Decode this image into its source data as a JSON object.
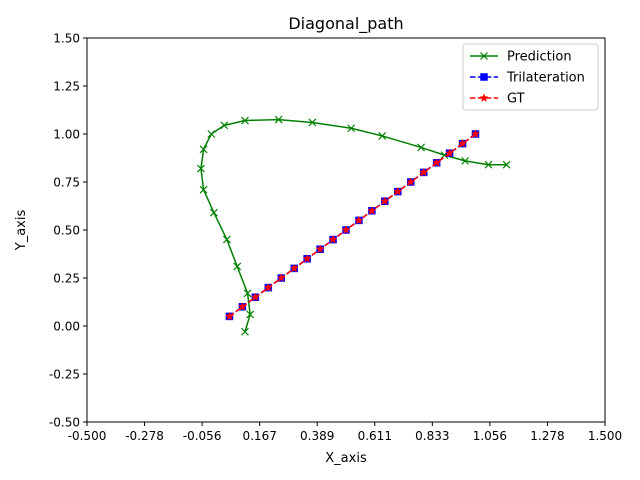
{
  "chart_data": {
    "type": "line",
    "title": "Diagonal_path",
    "xlabel": "X_axis",
    "ylabel": "Y_axis",
    "xlim": [
      -0.5,
      1.5
    ],
    "ylim": [
      -0.5,
      1.5
    ],
    "xticks": [
      "-0.500",
      "-0.278",
      "-0.056",
      "0.167",
      "0.389",
      "0.611",
      "0.833",
      "1.056",
      "1.278",
      "1.500"
    ],
    "yticks": [
      "-0.50",
      "-0.25",
      "0.00",
      "0.25",
      "0.50",
      "0.75",
      "1.00",
      "1.25",
      "1.50"
    ],
    "grid": false,
    "legend_position": "top-right",
    "series": [
      {
        "name": "Prediction",
        "color": "#008000",
        "marker": "x",
        "linestyle": "solid",
        "x": [
          1.12,
          1.05,
          0.96,
          0.88,
          0.79,
          0.64,
          0.52,
          0.37,
          0.24,
          0.11,
          0.03,
          -0.02,
          -0.05,
          -0.06,
          -0.05,
          -0.01,
          0.04,
          0.08,
          0.12,
          0.13,
          0.11
        ],
        "y": [
          0.84,
          0.84,
          0.86,
          0.89,
          0.93,
          0.99,
          1.03,
          1.06,
          1.075,
          1.07,
          1.045,
          1.0,
          0.92,
          0.82,
          0.71,
          0.59,
          0.45,
          0.31,
          0.17,
          0.06,
          -0.03
        ]
      },
      {
        "name": "Trilateration",
        "color": "#0000ff",
        "marker": "square",
        "linestyle": "dashed",
        "x": [
          0.05,
          0.1,
          0.15,
          0.2,
          0.25,
          0.3,
          0.35,
          0.4,
          0.45,
          0.5,
          0.55,
          0.6,
          0.65,
          0.7,
          0.75,
          0.8,
          0.85,
          0.9,
          0.95,
          1.0
        ],
        "y": [
          0.05,
          0.1,
          0.15,
          0.2,
          0.25,
          0.3,
          0.35,
          0.4,
          0.45,
          0.5,
          0.55,
          0.6,
          0.65,
          0.7,
          0.75,
          0.8,
          0.85,
          0.9,
          0.95,
          1.0
        ]
      },
      {
        "name": "GT",
        "color": "#ff0000",
        "marker": "star",
        "linestyle": "dashed",
        "x": [
          0.05,
          0.1,
          0.15,
          0.2,
          0.25,
          0.3,
          0.35,
          0.4,
          0.45,
          0.5,
          0.55,
          0.6,
          0.65,
          0.7,
          0.75,
          0.8,
          0.85,
          0.9,
          0.95,
          1.0
        ],
        "y": [
          0.05,
          0.1,
          0.15,
          0.2,
          0.25,
          0.3,
          0.35,
          0.4,
          0.45,
          0.5,
          0.55,
          0.6,
          0.65,
          0.7,
          0.75,
          0.8,
          0.85,
          0.9,
          0.95,
          1.0
        ]
      }
    ]
  }
}
